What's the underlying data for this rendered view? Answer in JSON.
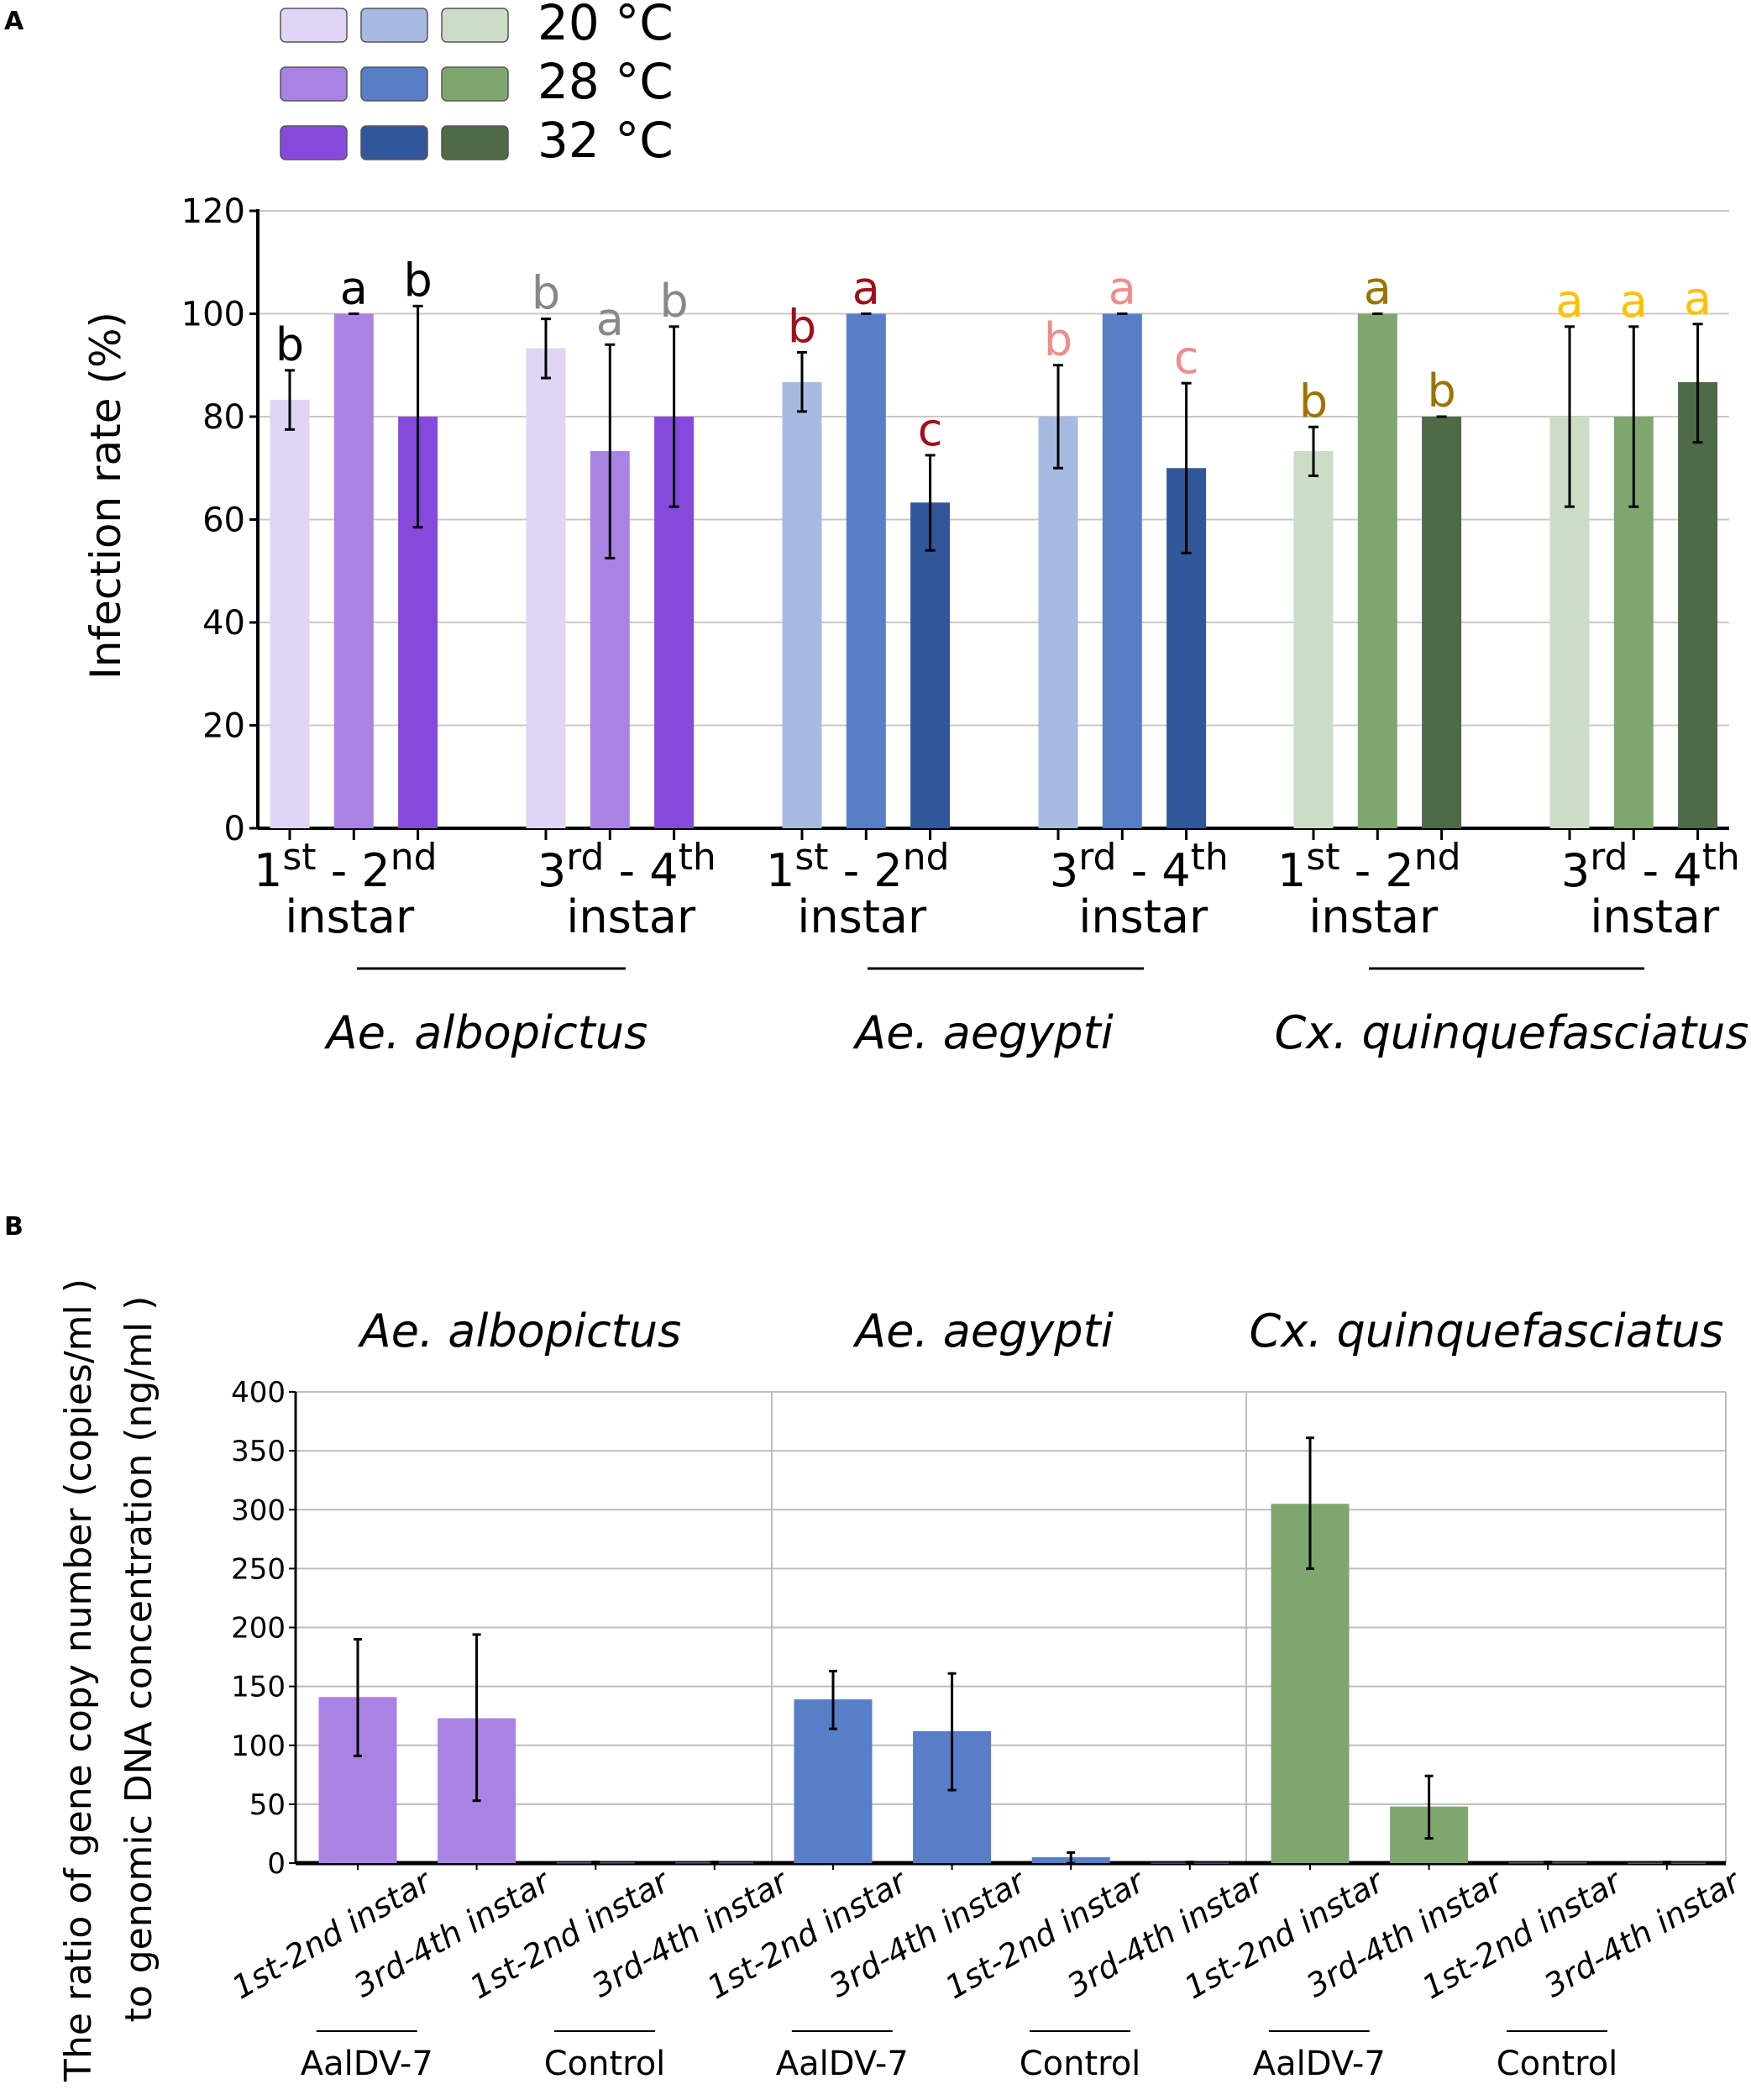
{
  "chart_data": [
    {
      "panel": "A",
      "type": "bar",
      "ylabel": "Infection rate (%)",
      "ylim": [
        0,
        120
      ],
      "yticks": [
        0,
        20,
        40,
        60,
        80,
        100,
        120
      ],
      "grid": true,
      "legend": {
        "placement": "top-left",
        "entries": [
          "20 °C",
          "28 °C",
          "32 °C"
        ],
        "colors": [
          [
            "#e1d4f5",
            "#a7bae2",
            "#cddcc6"
          ],
          [
            "#a983e4",
            "#577ec7",
            "#80a670"
          ],
          [
            "#8549dc",
            "#31569a",
            "#4f6a46"
          ]
        ]
      },
      "groups": [
        {
          "species": "Ae. albopictus",
          "stage_sup": [
            "st",
            "nd"
          ],
          "stage_base": [
            "1",
            " - 2"
          ],
          "instar": "instar",
          "values": [
            83.3,
            100,
            80
          ],
          "err_low": [
            77.5,
            100,
            58.5
          ],
          "err_high": [
            89,
            100,
            101.5
          ],
          "letters": [
            "b",
            "a",
            "b"
          ],
          "letter_color": "#000000",
          "colors": [
            "#e1d4f5",
            "#a983e4",
            "#8549dc"
          ]
        },
        {
          "species": "Ae. albopictus",
          "stage_sup": [
            "rd",
            "th"
          ],
          "stage_base": [
            "3",
            " - 4"
          ],
          "instar": "instar",
          "values": [
            93.3,
            73.3,
            80
          ],
          "err_low": [
            87.5,
            52.5,
            62.5
          ],
          "err_high": [
            99,
            94,
            97.5
          ],
          "letters": [
            "b",
            "a",
            "b"
          ],
          "letter_color": "#888888",
          "colors": [
            "#e1d4f5",
            "#a983e4",
            "#8549dc"
          ]
        },
        {
          "species": "Ae. aegypti",
          "stage_sup": [
            "st",
            "nd"
          ],
          "stage_base": [
            "1",
            " - 2"
          ],
          "instar": "instar",
          "values": [
            86.7,
            100,
            63.3
          ],
          "err_low": [
            81,
            100,
            54
          ],
          "err_high": [
            92.5,
            100,
            72.5
          ],
          "letters": [
            "b",
            "a",
            "c"
          ],
          "letter_color": "#a0101a",
          "colors": [
            "#a7bae2",
            "#577ec7",
            "#31569a"
          ]
        },
        {
          "species": "Ae. aegypti",
          "stage_sup": [
            "rd",
            "th"
          ],
          "stage_base": [
            "3",
            " - 4"
          ],
          "instar": "instar",
          "values": [
            80,
            100,
            70
          ],
          "err_low": [
            70,
            100,
            53.5
          ],
          "err_high": [
            90,
            100,
            86.5
          ],
          "letters": [
            "b",
            "a",
            "c"
          ],
          "letter_color": "#f08c8c",
          "colors": [
            "#a7bae2",
            "#577ec7",
            "#31569a"
          ]
        },
        {
          "species": "Cx. quinquefasciatus",
          "stage_sup": [
            "st",
            "nd"
          ],
          "stage_base": [
            "1",
            " - 2"
          ],
          "instar": "instar",
          "values": [
            73.3,
            100,
            80
          ],
          "err_low": [
            68.5,
            100,
            80
          ],
          "err_high": [
            78,
            100,
            80
          ],
          "letters": [
            "b",
            "a",
            "b"
          ],
          "letter_color": "#9a7400",
          "colors": [
            "#cddcc6",
            "#80a670",
            "#4f6a46"
          ]
        },
        {
          "species": "Cx. quinquefasciatus",
          "stage_sup": [
            "rd",
            "th"
          ],
          "stage_base": [
            "3",
            " - 4"
          ],
          "instar": "instar",
          "values": [
            80,
            80,
            86.7
          ],
          "err_low": [
            62.5,
            62.5,
            75
          ],
          "err_high": [
            97.5,
            97.5,
            98
          ],
          "letters": [
            "a",
            "a",
            "a"
          ],
          "letter_color": "#ffc000",
          "colors": [
            "#cddcc6",
            "#80a670",
            "#4f6a46"
          ]
        }
      ],
      "species": [
        "Ae. albopictus",
        "Ae. aegypti",
        "Cx. quinquefasciatus"
      ]
    },
    {
      "panel": "B",
      "type": "bar",
      "ylabel_line1": "The ratio of  gene copy number (copies/ml )",
      "ylabel_line2": "to genomic DNA concentration (ng/ml )",
      "ylim": [
        0,
        400
      ],
      "yticks": [
        0,
        50,
        100,
        150,
        200,
        250,
        300,
        350,
        400
      ],
      "grid": true,
      "species": [
        "Ae. albopictus",
        "Ae. aegypti",
        "Cx. quinquefasciatus"
      ],
      "treatments": [
        "AalDV-7",
        "Control"
      ],
      "categories": [
        "1st-2nd instar",
        "3rd-4th instar",
        "1st-2nd instar",
        "3rd-4th instar"
      ],
      "series": [
        {
          "name": "Ae. albopictus",
          "color": "#a983e4",
          "values": [
            141,
            123,
            0.5,
            0.5
          ],
          "err_low": [
            91,
            53,
            0.5,
            0.5
          ],
          "err_high": [
            190,
            194,
            1,
            1
          ]
        },
        {
          "name": "Ae. aegypti",
          "color": "#577ec7",
          "values": [
            139,
            112,
            5,
            0.3
          ],
          "err_low": [
            114,
            62,
            0,
            0.3
          ],
          "err_high": [
            163,
            161,
            9,
            1
          ]
        },
        {
          "name": "Cx. quinquefasciatus",
          "color": "#80a670",
          "values": [
            305,
            48,
            0.5,
            0.3
          ],
          "err_low": [
            250,
            21,
            0.5,
            0.3
          ],
          "err_high": [
            361,
            74,
            1,
            1
          ]
        }
      ]
    }
  ],
  "panel_labels": [
    "A",
    "B"
  ]
}
